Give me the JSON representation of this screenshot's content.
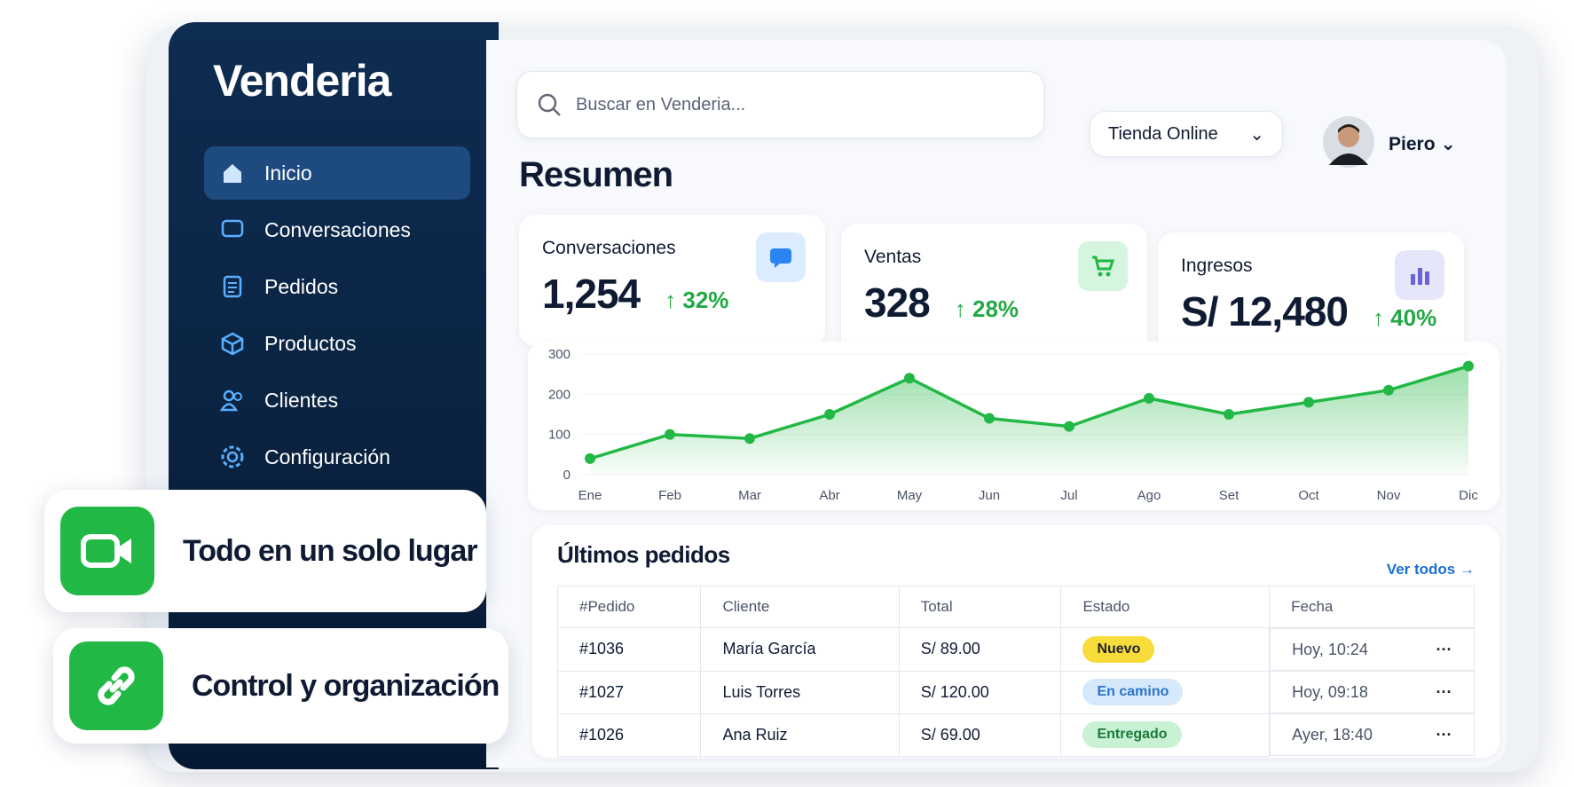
{
  "brand": "Venderia",
  "nav": [
    "Inicio",
    "Conversaciones",
    "Pedidos",
    "Productos",
    "Clientes",
    "Configuración"
  ],
  "search_placeholder": "Buscar en Venderia...",
  "store": "Tienda Online",
  "user": "Piero",
  "title": "Resumen",
  "stats": [
    {
      "label": "Conversaciones",
      "value": "1,254",
      "change": "32%"
    },
    {
      "label": "Ventas",
      "value": "328",
      "change": "28%"
    },
    {
      "label": "Ingresos",
      "value": "S/ 12,480",
      "change": "40%"
    }
  ],
  "chart_data": {
    "type": "line",
    "categories": [
      "Ene",
      "Feb",
      "Mar",
      "Abr",
      "May",
      "Jun",
      "Jul",
      "Ago",
      "Set",
      "Oct",
      "Nov",
      "Dic"
    ],
    "values": [
      40,
      100,
      90,
      150,
      240,
      140,
      120,
      190,
      150,
      180,
      210,
      270
    ],
    "color": "#22b845",
    "ylim": [
      0,
      300
    ],
    "yticks": [
      0,
      100,
      200,
      300
    ]
  },
  "orders": {
    "title": "Últimos pedidos",
    "link": "Ver todos",
    "headers": [
      "#Pedido",
      "Cliente",
      "Total",
      "Estado",
      "Fecha"
    ],
    "rows": [
      [
        "#1036",
        "María García",
        "S/ 89.00",
        "Nuevo",
        "Hoy, 10:24"
      ],
      [
        "#1027",
        "Luis Torres",
        "S/ 120.00",
        "En camino",
        "Hoy, 09:18"
      ],
      [
        "#1026",
        "Ana Ruiz",
        "S/ 69.00",
        "Entregado",
        "Ayer, 18:40"
      ]
    ]
  },
  "features": [
    "Todo en un solo lugar",
    "Control y organización"
  ]
}
